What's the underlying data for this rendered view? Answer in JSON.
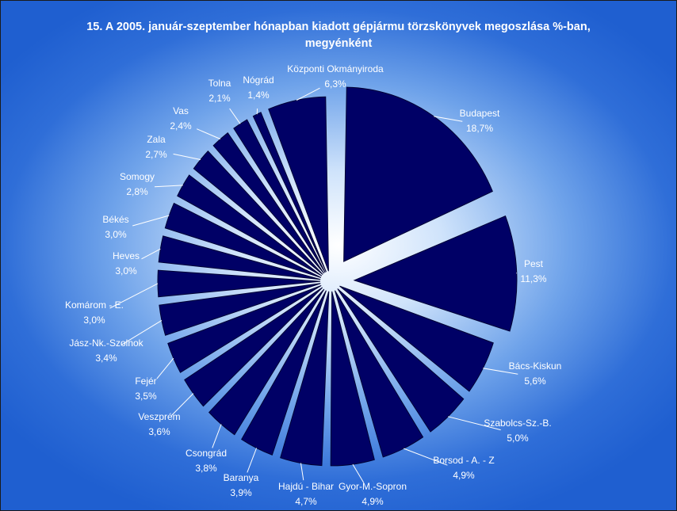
{
  "chart_data": {
    "type": "pie",
    "title_lines": [
      "15. A 2005. január-szeptember hónapban kiadott gépjármu törzskönyvek megoszlása %-ban,",
      "megyénként"
    ],
    "slices": [
      {
        "name": "Budapest",
        "value": 18.7,
        "label": "18,7%"
      },
      {
        "name": "Pest",
        "value": 11.3,
        "label": "11,3%"
      },
      {
        "name": "Bács-Kiskun",
        "value": 5.6,
        "label": "5,6%"
      },
      {
        "name": "Szabolcs-Sz.-B.",
        "value": 5.0,
        "label": "5,0%"
      },
      {
        "name": "Borsod - A. - Z",
        "value": 4.9,
        "label": "4,9%"
      },
      {
        "name": "Gyor-M.-Sopron",
        "value": 4.9,
        "label": "4,9%"
      },
      {
        "name": "Hajdú - Bihar",
        "value": 4.7,
        "label": "4,7%"
      },
      {
        "name": "Baranya",
        "value": 3.9,
        "label": "3,9%"
      },
      {
        "name": "Csongrád",
        "value": 3.8,
        "label": "3,8%"
      },
      {
        "name": "Veszprém",
        "value": 3.6,
        "label": "3,6%"
      },
      {
        "name": "Fejér",
        "value": 3.5,
        "label": "3,5%"
      },
      {
        "name": "Jász-Nk.-Szolnok",
        "value": 3.4,
        "label": "3,4%"
      },
      {
        "name": "Komárom - E.",
        "value": 3.0,
        "label": "3,0%"
      },
      {
        "name": "Heves",
        "value": 3.0,
        "label": "3,0%"
      },
      {
        "name": "Békés",
        "value": 3.0,
        "label": "3,0%"
      },
      {
        "name": "Somogy",
        "value": 2.8,
        "label": "2,8%"
      },
      {
        "name": "Zala",
        "value": 2.7,
        "label": "2,7%"
      },
      {
        "name": "Vas",
        "value": 2.4,
        "label": "2,4%"
      },
      {
        "name": "Tolna",
        "value": 2.1,
        "label": "2,1%"
      },
      {
        "name": "Nógrád",
        "value": 1.4,
        "label": "1,4%"
      },
      {
        "name": "Központi Okmányiroda",
        "value": 6.3,
        "label": "6,3%"
      }
    ],
    "colors": {
      "slice": "#000066",
      "slice_stroke": "#000033",
      "leader": "#ffffff"
    }
  }
}
